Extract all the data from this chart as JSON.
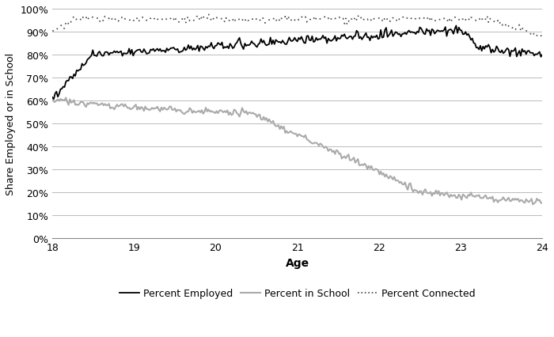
{
  "title": "",
  "xlabel": "Age",
  "ylabel": "Share Employed or in School",
  "xlim": [
    18,
    24
  ],
  "ylim": [
    0,
    1.0
  ],
  "yticks": [
    0,
    0.1,
    0.2,
    0.3,
    0.4,
    0.5,
    0.6,
    0.7,
    0.8,
    0.9,
    1.0
  ],
  "xticks": [
    18,
    19,
    20,
    21,
    22,
    23,
    24
  ],
  "line_employed_color": "#000000",
  "line_school_color": "#aaaaaa",
  "line_connected_color": "#444444",
  "legend_labels": [
    "Percent Employed",
    "Percent in School",
    "Percent Connected"
  ],
  "background_color": "#ffffff",
  "grid_color": "#bbbbbb",
  "figsize": [
    7.0,
    4.27
  ],
  "dpi": 100
}
